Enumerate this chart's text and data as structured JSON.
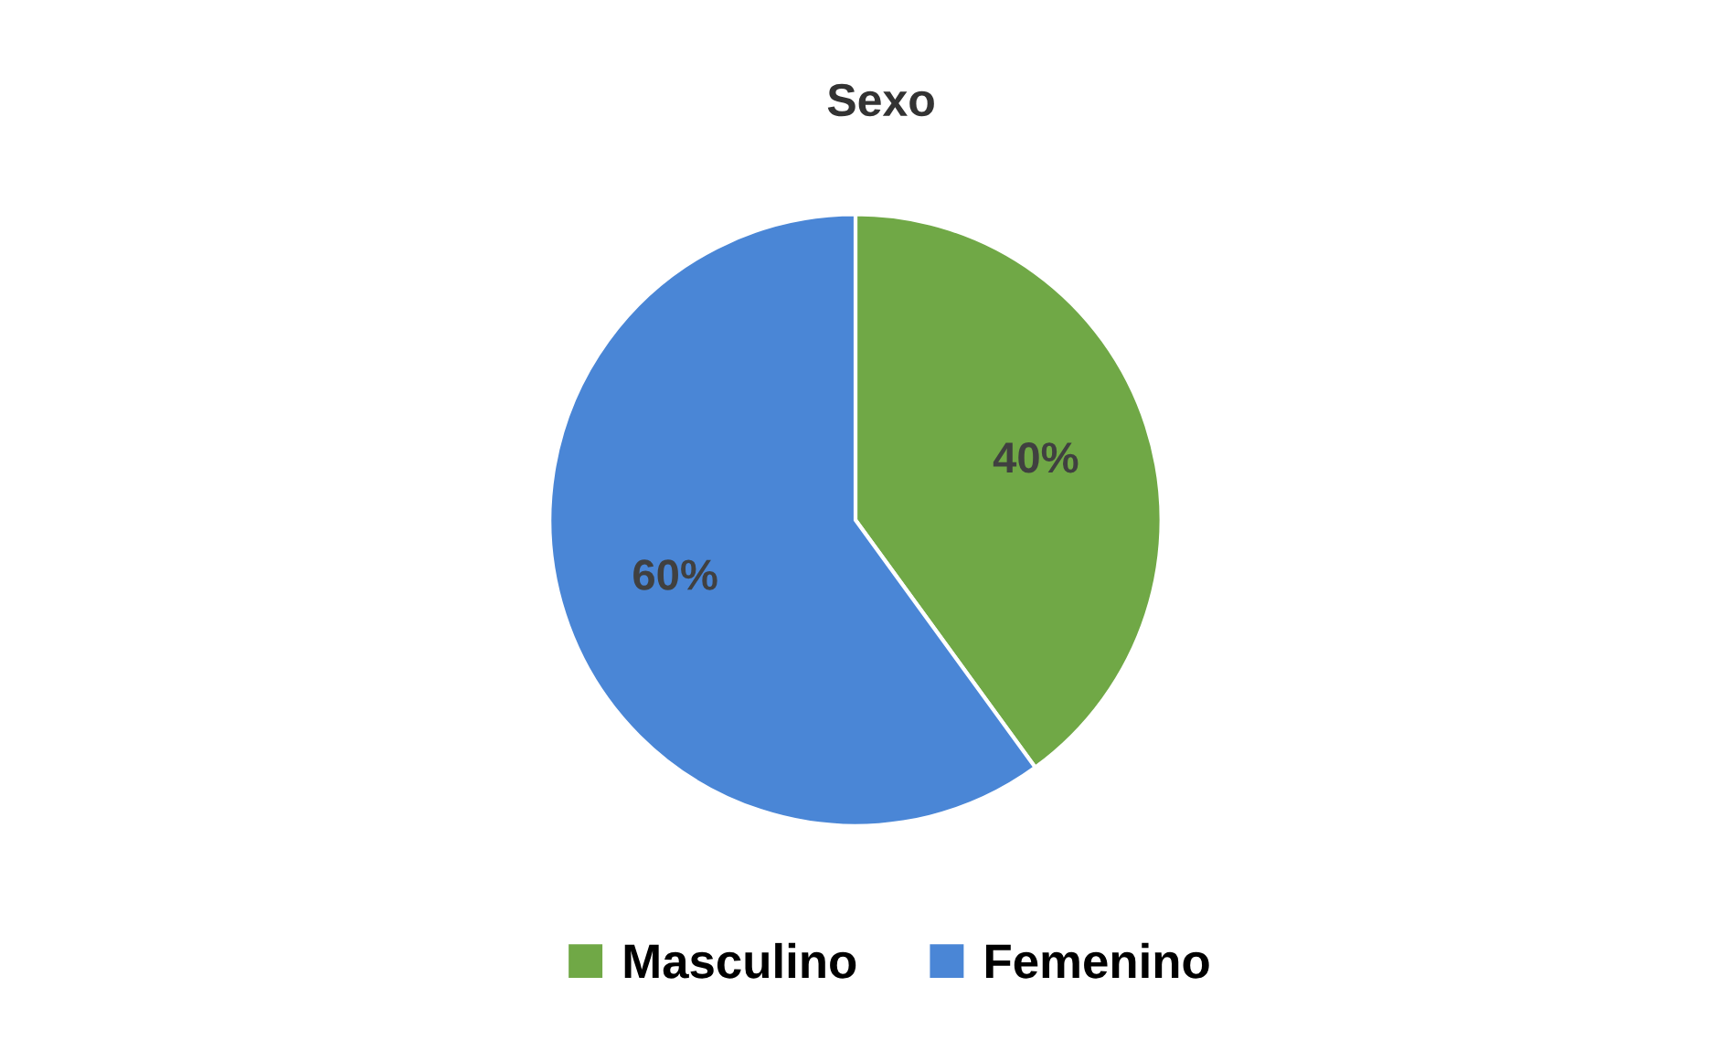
{
  "chart_data": {
    "type": "pie",
    "title": "Sexo",
    "categories": [
      "Masculino",
      "Femenino"
    ],
    "values": [
      40,
      60
    ],
    "colors": [
      "#70a846",
      "#4a86d6"
    ],
    "value_labels": [
      "40%",
      "60%"
    ],
    "legend": "bottom"
  }
}
